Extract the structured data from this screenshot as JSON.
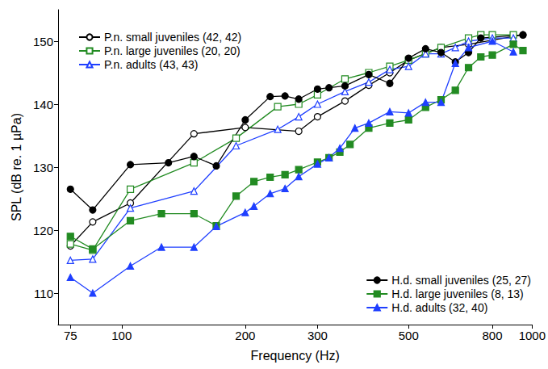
{
  "chart_data": {
    "type": "line",
    "xlabel": "Frequency (Hz)",
    "ylabel": "SPL (dB re. 1 µPa)",
    "log": "x",
    "grid": false,
    "xlim": [
      70,
      1000
    ],
    "xticks": [
      75,
      100,
      200,
      300,
      500,
      800,
      1000
    ],
    "ylim": [
      105,
      155
    ],
    "yticks": [
      110,
      120,
      130,
      140,
      150
    ],
    "series": [
      {
        "name": "P.n. small juveniles (42, 42)",
        "legend": "upper left",
        "color": "#000000",
        "marker": "circle-open",
        "x": [
          75,
          85,
          105,
          150,
          200,
          270,
          300,
          350,
          400,
          450,
          500,
          600,
          700,
          950
        ],
        "values": [
          117.5,
          121.3,
          124.3,
          135.3,
          136.3,
          135.7,
          138,
          140.5,
          143,
          145,
          147,
          149,
          149.5,
          151
        ]
      },
      {
        "name": "P.n. large juveniles (20, 20)",
        "legend": "upper left",
        "color": "#228b22",
        "marker": "square-open",
        "x": [
          75,
          85,
          105,
          150,
          190,
          240,
          270,
          300,
          350,
          400,
          450,
          500,
          550,
          600,
          700,
          750,
          800,
          900
        ],
        "values": [
          117.8,
          116.8,
          126.5,
          130.7,
          134.6,
          139.6,
          140,
          141.5,
          144,
          145,
          146,
          147,
          148,
          149,
          150.5,
          151,
          151,
          151
        ]
      },
      {
        "name": "P.n. adults (43, 43)",
        "legend": "upper left",
        "color": "#1f3fff",
        "marker": "triangle-open",
        "x": [
          75,
          85,
          105,
          150,
          190,
          240,
          270,
          300,
          350,
          400,
          450,
          500,
          550,
          600,
          650,
          700,
          800,
          900
        ],
        "values": [
          115.2,
          115.4,
          123.5,
          126.2,
          133.4,
          136,
          138,
          140,
          142,
          143.5,
          145.5,
          146,
          148,
          148,
          149,
          150,
          150.5,
          150.5
        ]
      },
      {
        "name": "H.d. small juveniles (25, 27)",
        "legend": "lower right",
        "color": "#000000",
        "marker": "circle",
        "x": [
          75,
          85,
          105,
          130,
          150,
          170,
          200,
          230,
          250,
          270,
          300,
          320,
          350,
          400,
          450,
          500,
          550,
          600,
          650,
          700,
          750,
          950
        ],
        "values": [
          126.5,
          123.2,
          130.4,
          130.7,
          131.7,
          130.2,
          137.5,
          141.2,
          141.3,
          140.8,
          142.4,
          142.6,
          142.9,
          144.7,
          143.3,
          147.3,
          148.8,
          148.2,
          146.7,
          148.2,
          150.5,
          151
        ]
      },
      {
        "name": "H.d. large juveniles (8, 13)",
        "legend": "lower right",
        "color": "#228b22",
        "marker": "square",
        "x": [
          75,
          85,
          105,
          125,
          150,
          170,
          190,
          210,
          230,
          250,
          270,
          300,
          320,
          340,
          360,
          400,
          450,
          500,
          550,
          600,
          650,
          700,
          750,
          800,
          900,
          950
        ],
        "values": [
          119,
          117,
          121.5,
          122.6,
          122.6,
          120.7,
          125.4,
          127.7,
          128.4,
          128.8,
          129.6,
          130.8,
          131.5,
          132.4,
          133.6,
          136.2,
          137,
          137.5,
          139.5,
          140.7,
          142.2,
          145.8,
          147.5,
          147.8,
          149.5,
          148.5
        ]
      },
      {
        "name": "H.d. adults (32, 40)",
        "legend": "lower right",
        "color": "#1f3fff",
        "marker": "triangle",
        "x": [
          75,
          85,
          105,
          125,
          150,
          170,
          200,
          210,
          230,
          250,
          270,
          300,
          320,
          340,
          370,
          400,
          450,
          500,
          550,
          600,
          650,
          700,
          800,
          900
        ],
        "values": [
          112.5,
          110,
          114.3,
          117.3,
          117.3,
          120.6,
          122.8,
          123.8,
          125.8,
          126.6,
          128.5,
          130.5,
          131.5,
          133,
          136.2,
          137,
          138.8,
          138.6,
          140.3,
          140.3,
          146.5,
          149,
          150,
          148.3
        ]
      }
    ]
  }
}
